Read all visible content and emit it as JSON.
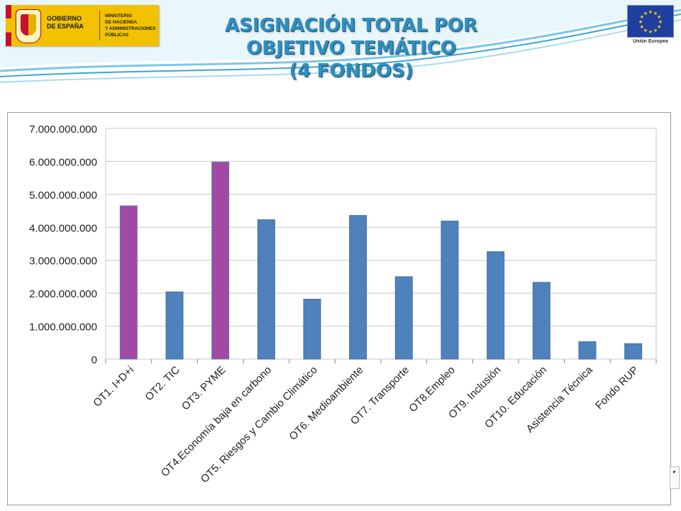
{
  "header": {
    "gov_name": "GOBIERNO\nDE ESPAÑA",
    "ministry": "MINISTERIO\nDE HACIENDA\nY ADMINISTRACIONES\nPÚBLICAS",
    "eu_label": "Unión Europea",
    "title_lines": [
      "ASIGNACIÓN TOTAL POR",
      "OBJETIVO TEMÁTICO",
      "(4 FONDOS)"
    ]
  },
  "colors": {
    "highlight": "#a349a4",
    "bar": "#4f81bd",
    "title": "#2f8fc0"
  },
  "side_control": {
    "label": "▸"
  },
  "chart_data": {
    "type": "bar",
    "title": "",
    "xlabel": "",
    "ylabel": "",
    "ylim": [
      0,
      7000000000
    ],
    "yticks": [
      0,
      1000000000,
      2000000000,
      3000000000,
      4000000000,
      5000000000,
      6000000000,
      7000000000
    ],
    "ytick_labels": [
      "0",
      "1.000.000.000",
      "2.000.000.000",
      "3.000.000.000",
      "4.000.000.000",
      "5.000.000.000",
      "6.000.000.000",
      "7.000.000.000"
    ],
    "grid": true,
    "legend": "none",
    "categories": [
      "OT1. I+D+i",
      "OT2. TIC",
      "OT3. PYME",
      "OT4.Economía baja en carbono",
      "OT5. Riesgos y Cambio Climático",
      "OT6. Medioambiente",
      "OT7. Transporte",
      "OT8.Empleo",
      "OT9. Inclusión",
      "OT10. Educación",
      "Asistencia Técnica",
      "Fondo RUP"
    ],
    "values": [
      4650000000,
      2040000000,
      5980000000,
      4230000000,
      1820000000,
      4360000000,
      2500000000,
      4190000000,
      3260000000,
      2330000000,
      530000000,
      470000000
    ],
    "highlighted": [
      true,
      false,
      true,
      false,
      false,
      false,
      false,
      false,
      false,
      false,
      false,
      false
    ]
  }
}
